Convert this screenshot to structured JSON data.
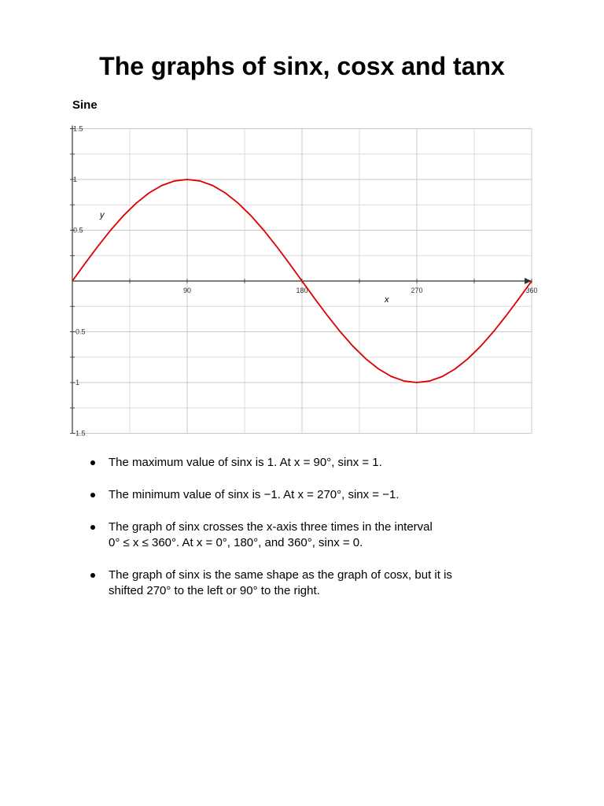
{
  "header": {
    "title": "The graphs of sinx, cosx and tanx"
  },
  "section": {
    "heading": "Sine"
  },
  "chart_data": {
    "type": "line",
    "x_label": "x",
    "y_label": "y",
    "x": [
      0,
      10,
      20,
      30,
      40,
      50,
      60,
      70,
      80,
      90,
      100,
      110,
      120,
      130,
      140,
      150,
      160,
      170,
      180,
      190,
      200,
      210,
      220,
      230,
      240,
      250,
      260,
      270,
      280,
      290,
      300,
      310,
      320,
      330,
      340,
      350,
      360
    ],
    "values": [
      0,
      0.174,
      0.342,
      0.5,
      0.643,
      0.766,
      0.866,
      0.94,
      0.985,
      1,
      0.985,
      0.94,
      0.866,
      0.766,
      0.643,
      0.5,
      0.342,
      0.174,
      0,
      -0.174,
      -0.342,
      -0.5,
      -0.643,
      -0.766,
      -0.866,
      -0.94,
      -0.985,
      -1,
      -0.985,
      -0.94,
      -0.866,
      -0.766,
      -0.643,
      -0.5,
      -0.342,
      -0.174,
      0
    ],
    "color": "#e00000",
    "xlim": [
      0,
      360
    ],
    "ylim": [
      -1.5,
      1.5
    ],
    "xticks": [
      90,
      180,
      270,
      360
    ],
    "yticks": [
      1.5,
      1,
      0.5,
      -0.5,
      -1,
      -1.5
    ],
    "xminor": [
      45,
      135,
      225,
      315
    ],
    "yminor": [
      1.25,
      0.75,
      0.25,
      -0.25,
      -0.75,
      -1.25
    ],
    "grid": true
  },
  "bullets": [
    [
      "The maximum value of sinx is 1.  At x = 90°, sinx = 1."
    ],
    [
      "The minimum value of sinx is −1. At x = 270°, sinx = −1."
    ],
    [
      "The graph of sinx crosses the x-axis three times in the interval",
      "0° ≤ x ≤ 360°. At x = 0°, 180°, and 360°, sinx = 0."
    ],
    [
      "The graph of sinx is the same shape as the graph of cosx, but it is",
      "shifted 270° to the left or 90° to the right."
    ]
  ]
}
